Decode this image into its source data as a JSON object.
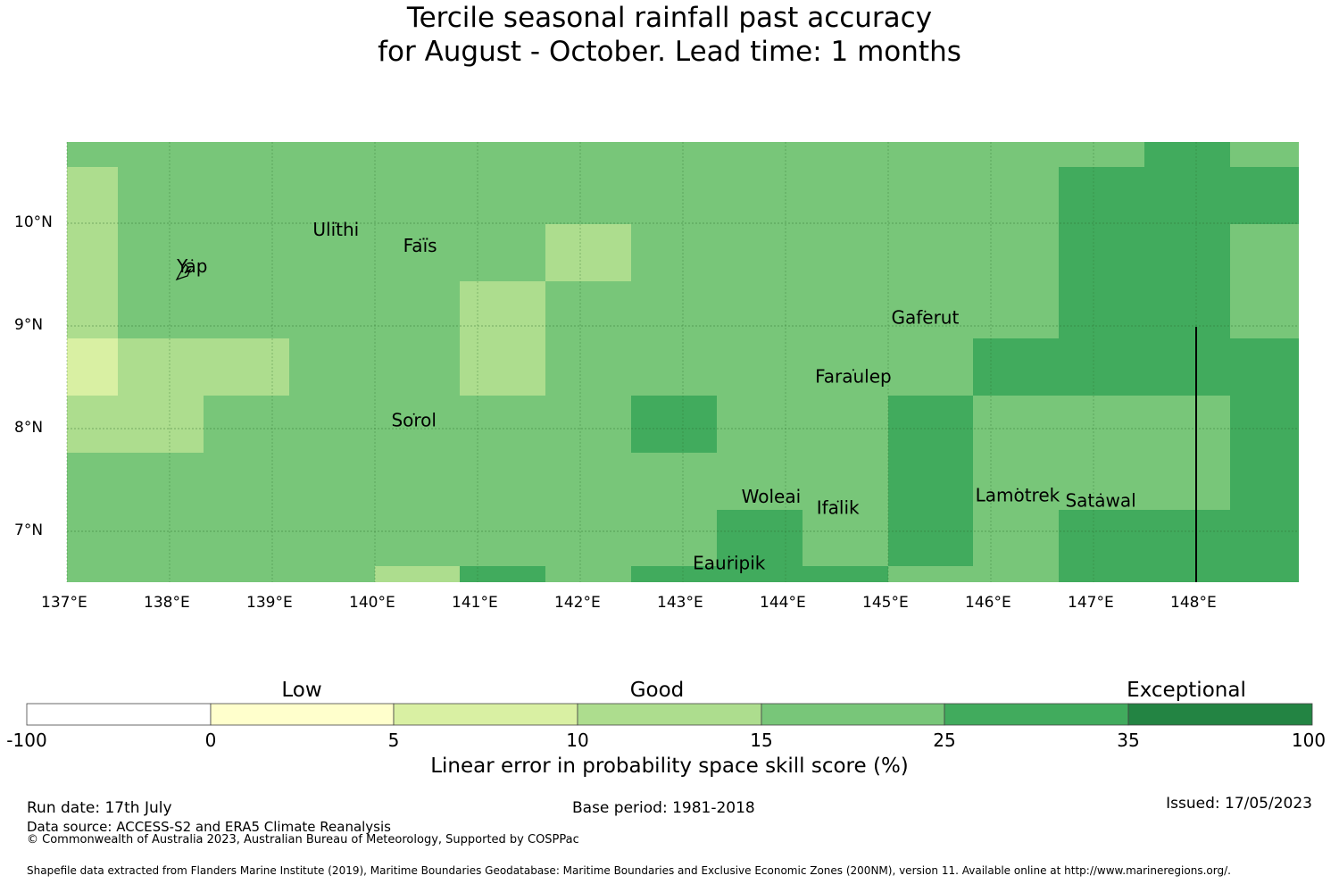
{
  "title_line1": "Tercile seasonal rainfall past accuracy",
  "title_line2": "for August - October. Lead time: 1 months",
  "map": {
    "lon_labels": [
      "137°E",
      "138°E",
      "139°E",
      "140°E",
      "141°E",
      "142°E",
      "143°E",
      "144°E",
      "145°E",
      "146°E",
      "147°E",
      "148°E"
    ],
    "lat_labels": [
      "10°N",
      "9°N",
      "8°N",
      "7°N"
    ],
    "islands": [
      {
        "name": "Yap",
        "lon": 138.22,
        "lat": 9.52
      },
      {
        "name": "Ulithi",
        "lon": 139.62,
        "lat": 9.88
      },
      {
        "name": "Faïs",
        "lon": 140.44,
        "lat": 9.72
      },
      {
        "name": "Gaferut",
        "lon": 145.36,
        "lat": 9.02
      },
      {
        "name": "Faraulep",
        "lon": 144.66,
        "lat": 8.45
      },
      {
        "name": "Sorol",
        "lon": 140.38,
        "lat": 8.02
      },
      {
        "name": "Woleai",
        "lon": 143.86,
        "lat": 7.28
      },
      {
        "name": "Ifalik",
        "lon": 144.51,
        "lat": 7.17
      },
      {
        "name": "Lamotrek",
        "lon": 146.26,
        "lat": 7.29
      },
      {
        "name": "Satawal",
        "lon": 147.07,
        "lat": 7.24
      },
      {
        "name": "Eauripik",
        "lon": 143.45,
        "lat": 6.63
      }
    ],
    "color_bands": [
      "#ffffff",
      "#ffffcc",
      "#d9f0a3",
      "#addd8e",
      "#78c679",
      "#41ab5d",
      "#238443"
    ]
  },
  "colorbar": {
    "categories": [
      "Low",
      "Good",
      "Exceptional"
    ],
    "ticks": [
      "-100",
      "0",
      "5",
      "10",
      "15",
      "25",
      "35",
      "100"
    ],
    "label": "Linear error in probability space skill score (%)"
  },
  "footer": {
    "run_date": "Run date: 17th July",
    "data_source": "Data source: ACCESS-S2 and ERA5 Climate Reanalysis",
    "copyright": "© Commonwealth of Australia 2023, Australian Bureau of Meteorology, Supported by COSPPac",
    "base_period": "Base period: 1981-2018",
    "issued": "Issued: 17/05/2023",
    "shapefile": "Shapefile data extracted from Flanders Marine Institute (2019), Maritime Boundaries Geodatabase: Maritime Boundaries and Exclusive Economic Zones (200NM), version 11. Available online at http://www.marineregions.org/."
  }
}
